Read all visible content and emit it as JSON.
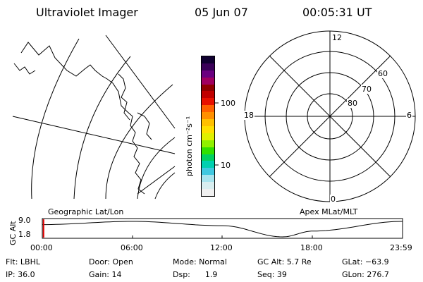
{
  "header": {
    "instrument": "Ultraviolet Imager",
    "date": "05 Jun 07",
    "time": "00:05:31 UT"
  },
  "colorbar": {
    "unit_label": "photon cm⁻²s⁻¹",
    "tick_100": "100",
    "tick_10": "10",
    "colors": [
      "#f0f0f0",
      "#d8eef0",
      "#a8e4ee",
      "#40c8e0",
      "#00d0b0",
      "#00d060",
      "#30e000",
      "#90f000",
      "#e0f000",
      "#ffe000",
      "#ffc000",
      "#ff9000",
      "#ff6000",
      "#e81000",
      "#c00000",
      "#900000",
      "#a00060",
      "#6a0080",
      "#3a0058",
      "#100030"
    ]
  },
  "polar_plot": {
    "lat_labels": [
      "80",
      "70",
      "60"
    ],
    "mlt_labels": {
      "top": "12",
      "bottom": "0",
      "left": "18",
      "right": "6"
    }
  },
  "timeline": {
    "left_title": "Geographic Lat/Lon",
    "right_title": "Apex MLat/MLT",
    "y_axis_label": "GC Alt",
    "y_ticks": [
      "9.0",
      "1.8"
    ],
    "x_ticks": [
      "00:00",
      "06:00",
      "12:00",
      "18:00",
      "23:59"
    ]
  },
  "chart_data": {
    "type": "line",
    "title": "",
    "xlabel": "",
    "ylabel": "GC Alt",
    "ylim": [
      1.8,
      9.0
    ],
    "x": [
      "00:00",
      "06:00",
      "12:00",
      "16:00",
      "18:00",
      "23:59"
    ],
    "series": [
      {
        "values": [
          7.5,
          9.0,
          7.0,
          1.8,
          4.5,
          9.0
        ]
      }
    ],
    "marker_time": "00:05"
  },
  "info": {
    "flt": "Flt: LBHL",
    "ip": "IP: 36.0",
    "door": "Door: Open",
    "gain": "Gain: 14",
    "mode": "Mode: Normal",
    "dsp": "Dsp:      1.9",
    "gc_alt": "GC Alt: 5.7 Re",
    "seq": "Seq: 39",
    "glat": "GLat: −63.9",
    "glon": "GLon: 276.7"
  }
}
